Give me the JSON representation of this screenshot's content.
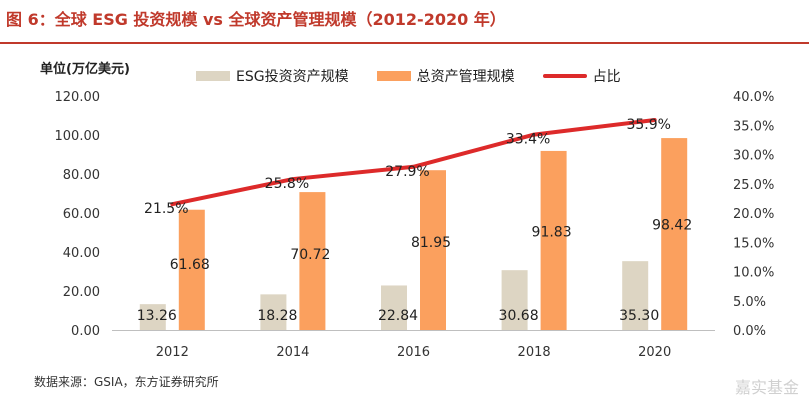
{
  "header": {
    "title": "图 6：全球 ESG 投资规模 vs 全球资产管理规模（2012-2020 年）",
    "unit_label": "单位(万亿美元)"
  },
  "footer": {
    "source": "数据来源：GSIA，东方证券研究所",
    "watermark": "嘉实基金"
  },
  "chart_data": {
    "type": "bar",
    "categories": [
      "2012",
      "2014",
      "2016",
      "2018",
      "2020"
    ],
    "series": [
      {
        "name": "ESG投资资产规模",
        "kind": "bar",
        "color": "#ddd5c3",
        "values": [
          13.26,
          18.28,
          22.84,
          30.68,
          35.3
        ],
        "labels": [
          "13.26",
          "18.28",
          "22.84",
          "30.68",
          "35.30"
        ]
      },
      {
        "name": "总资产管理规模",
        "kind": "bar",
        "color": "#fba05e",
        "values": [
          61.68,
          70.72,
          81.95,
          91.83,
          98.42
        ],
        "labels": [
          "61.68",
          "70.72",
          "81.95",
          "91.83",
          "98.42"
        ]
      },
      {
        "name": "占比",
        "kind": "line",
        "axis": "right",
        "color": "#dd2a2a",
        "values": [
          21.5,
          25.8,
          27.9,
          33.4,
          35.9
        ],
        "labels": [
          "21.5%",
          "25.8%",
          "27.9%",
          "33.4%",
          "35.9%"
        ]
      }
    ],
    "left_axis": {
      "ylim": [
        0,
        120
      ],
      "ticks": [
        "0.00",
        "20.00",
        "40.00",
        "60.00",
        "80.00",
        "100.00",
        "120.00"
      ]
    },
    "right_axis": {
      "ylim": [
        0,
        40
      ],
      "ticks": [
        "0.0%",
        "5.0%",
        "10.0%",
        "15.0%",
        "20.0%",
        "25.0%",
        "30.0%",
        "35.0%",
        "40.0%"
      ]
    },
    "legend_position": "top",
    "grid": false
  }
}
